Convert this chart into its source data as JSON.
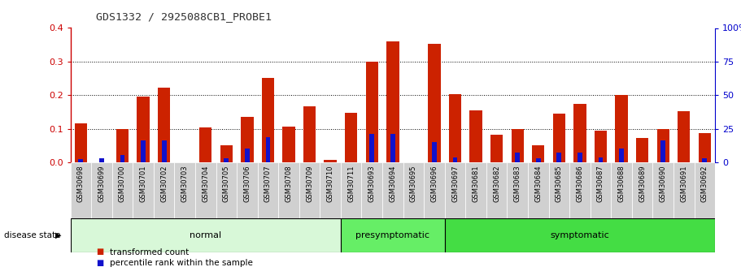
{
  "title": "GDS1332 / 2925088CB1_PROBE1",
  "samples": [
    "GSM30698",
    "GSM30699",
    "GSM30700",
    "GSM30701",
    "GSM30702",
    "GSM30703",
    "GSM30704",
    "GSM30705",
    "GSM30706",
    "GSM30707",
    "GSM30708",
    "GSM30709",
    "GSM30710",
    "GSM30711",
    "GSM30693",
    "GSM30694",
    "GSM30695",
    "GSM30696",
    "GSM30697",
    "GSM30681",
    "GSM30682",
    "GSM30683",
    "GSM30684",
    "GSM30685",
    "GSM30686",
    "GSM30687",
    "GSM30688",
    "GSM30689",
    "GSM30690",
    "GSM30691",
    "GSM30692"
  ],
  "red_values": [
    0.115,
    0.0,
    0.1,
    0.197,
    0.222,
    0.0,
    0.104,
    0.052,
    0.135,
    0.252,
    0.106,
    0.167,
    0.008,
    0.148,
    0.3,
    0.36,
    0.0,
    0.352,
    0.204,
    0.155,
    0.083,
    0.1,
    0.05,
    0.145,
    0.175,
    0.095,
    0.2,
    0.072,
    0.1,
    0.152,
    0.088
  ],
  "blue_values": [
    0.01,
    0.012,
    0.022,
    0.065,
    0.065,
    0.0,
    0.0,
    0.012,
    0.042,
    0.075,
    0.0,
    0.0,
    0.0,
    0.0,
    0.085,
    0.085,
    0.0,
    0.06,
    0.015,
    0.0,
    0.0,
    0.03,
    0.012,
    0.03,
    0.03,
    0.015,
    0.042,
    0.0,
    0.065,
    0.0,
    0.012
  ],
  "groups": [
    {
      "label": "normal",
      "start": 0,
      "end": 13,
      "color": "#d8f8d8"
    },
    {
      "label": "presymptomatic",
      "start": 13,
      "end": 18,
      "color": "#66ee66"
    },
    {
      "label": "symptomatic",
      "start": 18,
      "end": 31,
      "color": "#44dd44"
    }
  ],
  "ylim_left": [
    0,
    0.4
  ],
  "ylim_right": [
    0,
    100
  ],
  "yticks_left": [
    0.0,
    0.1,
    0.2,
    0.3,
    0.4
  ],
  "yticks_right": [
    0,
    25,
    50,
    75,
    100
  ],
  "left_axis_color": "#cc0000",
  "right_axis_color": "#0000cc",
  "bar_color_red": "#cc2200",
  "bar_color_blue": "#1111cc",
  "grid_color": "#000000",
  "xlabel_bg": "#d0d0d0",
  "disease_state_label": "disease state",
  "legend_items": [
    "transformed count",
    "percentile rank within the sample"
  ]
}
